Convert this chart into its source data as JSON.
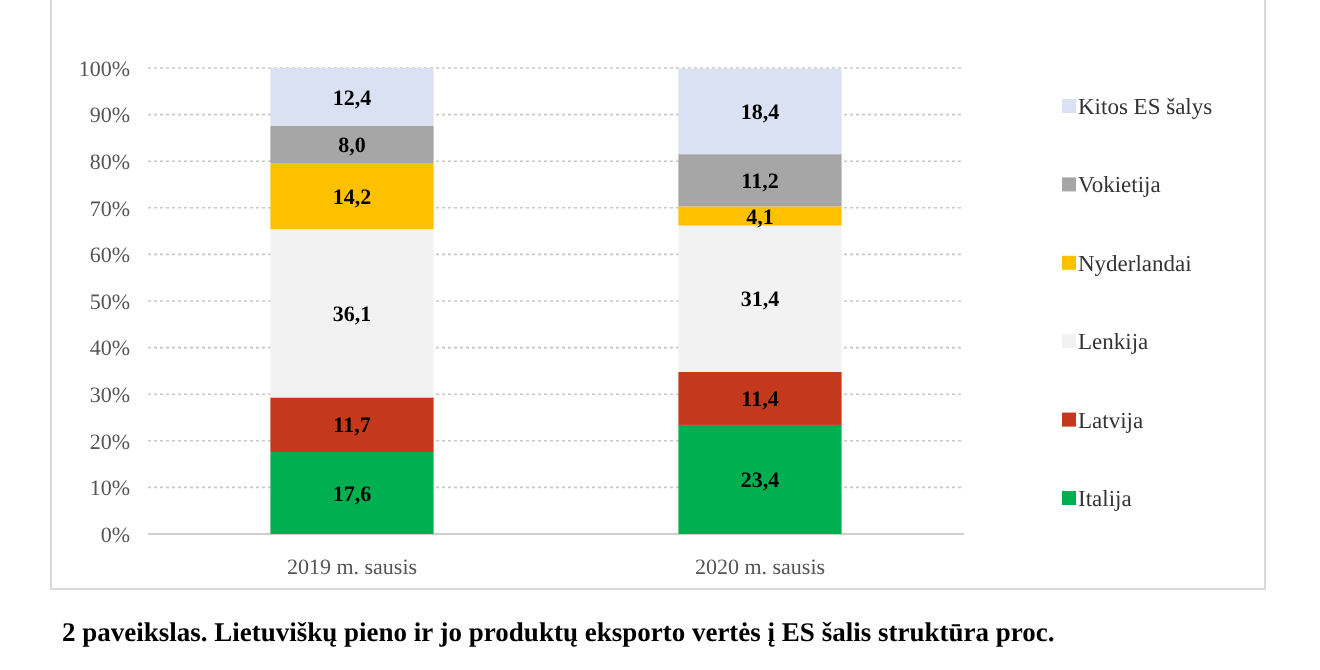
{
  "chart_data": {
    "type": "bar",
    "stacked": true,
    "title": "2 paveikslas. Lietuviškų pieno ir jo produktų eksporto vertės į ES šalis struktūra proc.",
    "categories": [
      "2019 m. sausis",
      "2020 m. sausis"
    ],
    "series": [
      {
        "name": "Italija",
        "color": "#00b050",
        "values": [
          17.6,
          23.4
        ],
        "value_labels": [
          "17,6",
          "23,4"
        ]
      },
      {
        "name": "Latvija",
        "color": "#c4391b",
        "values": [
          11.7,
          11.4
        ],
        "value_labels": [
          "11,7",
          "11,4"
        ]
      },
      {
        "name": "Lenkija",
        "color": "#f2f2f2",
        "values": [
          36.1,
          31.4
        ],
        "value_labels": [
          "36,1",
          "31,4"
        ]
      },
      {
        "name": "Nyderlandai",
        "color": "#ffc000",
        "values": [
          14.2,
          4.1
        ],
        "value_labels": [
          "14,2",
          "4,1"
        ]
      },
      {
        "name": "Vokietija",
        "color": "#a6a6a6",
        "values": [
          8.0,
          11.2
        ],
        "value_labels": [
          "8,0",
          "11,2"
        ]
      },
      {
        "name": "Kitos ES šalys",
        "color": "#d9e1f2",
        "values": [
          12.4,
          18.4
        ],
        "value_labels": [
          "12,4",
          "18,4"
        ]
      }
    ],
    "ylim": [
      0,
      100
    ],
    "yticks": [
      {
        "value": 0,
        "label": "0%"
      },
      {
        "value": 10,
        "label": "10%"
      },
      {
        "value": 20,
        "label": "20%"
      },
      {
        "value": 30,
        "label": "30%"
      },
      {
        "value": 40,
        "label": "40%"
      },
      {
        "value": 50,
        "label": "50%"
      },
      {
        "value": 60,
        "label": "60%"
      },
      {
        "value": 70,
        "label": "70%"
      },
      {
        "value": 80,
        "label": "80%"
      },
      {
        "value": 90,
        "label": "90%"
      },
      {
        "value": 100,
        "label": "100%"
      }
    ],
    "grid": "y",
    "legend": "right"
  }
}
